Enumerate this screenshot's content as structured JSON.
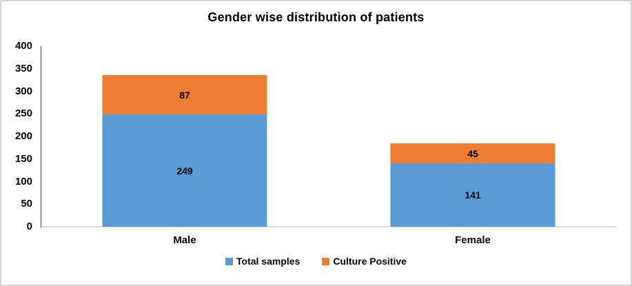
{
  "chart_data": {
    "type": "bar",
    "stacked": true,
    "title": "Gender wise distribution of patients",
    "categories": [
      "Male",
      "Female"
    ],
    "series": [
      {
        "name": "Total samples",
        "color": "#5B9BD5",
        "values": [
          249,
          141
        ]
      },
      {
        "name": "Culture Positive",
        "color": "#ED7D31",
        "values": [
          87,
          45
        ]
      }
    ],
    "xlabel": "",
    "ylabel": "",
    "ylim": [
      0,
      400
    ],
    "yticks": [
      0,
      50,
      100,
      150,
      200,
      250,
      300,
      350,
      400
    ],
    "grid": false,
    "data_labels": true,
    "legend_position": "bottom",
    "colors": {
      "y_axis_line": "#404040",
      "x_axis_line": "#D9D9D9",
      "frame_border": "#D6D6D6",
      "text": "#000000",
      "background": "#FFFFFF"
    }
  },
  "legend": {
    "items": [
      {
        "label": "Total samples",
        "color": "#5B9BD5",
        "swatch": "square"
      },
      {
        "label": "Culture Positive",
        "color": "#ED7D31",
        "swatch": "square"
      }
    ]
  }
}
